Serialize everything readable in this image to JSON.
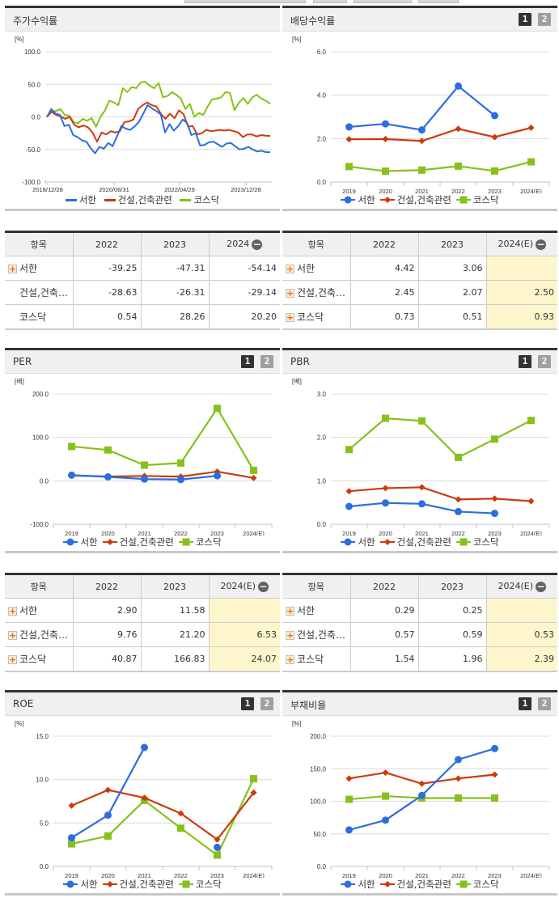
{
  "colors": {
    "seohan": "#2a6ee0",
    "construction": "#cc3a0c",
    "kosdaq": "#86c11c",
    "grid": "#dcdcdc",
    "estimate_bg": "#fdf6cd"
  },
  "legend": {
    "s1": "서한",
    "s2": "건설,건축관련",
    "s3": "코스닥"
  },
  "panels": {
    "stock_return": {
      "title": "주가수익률",
      "unit": "[%]"
    },
    "dividend_yield": {
      "title": "배당수익률",
      "unit": "[%]",
      "btn1": "1",
      "btn2": "2"
    },
    "per": {
      "title": "PER",
      "unit": "[배]",
      "btn1": "1",
      "btn2": "2"
    },
    "pbr": {
      "title": "PBR",
      "unit": "[배]",
      "btn1": "1",
      "btn2": "2"
    },
    "roe": {
      "title": "ROE",
      "unit": "[%]",
      "btn1": "1",
      "btn2": "2"
    },
    "debt_ratio": {
      "title": "부채비율",
      "unit": "[%]",
      "btn1": "1",
      "btn2": "2"
    }
  },
  "tables": {
    "stock_return": {
      "headers": [
        "항목",
        "2022",
        "2023",
        "2024"
      ],
      "rows": [
        {
          "name": "서한",
          "v": [
            "-39.25",
            "-47.31",
            "-54.14"
          ],
          "expand": true
        },
        {
          "name": "건설,건축…",
          "v": [
            "-28.63",
            "-26.31",
            "-29.14"
          ],
          "expand": false
        },
        {
          "name": "코스닥",
          "v": [
            "0.54",
            "28.26",
            "20.20"
          ],
          "expand": false
        }
      ]
    },
    "dividend_yield": {
      "headers": [
        "항목",
        "2022",
        "2023",
        "2024(E)"
      ],
      "rows": [
        {
          "name": "서한",
          "v": [
            "4.42",
            "3.06",
            ""
          ]
        },
        {
          "name": "건설,건축…",
          "v": [
            "2.45",
            "2.07",
            "2.50"
          ]
        },
        {
          "name": "코스닥",
          "v": [
            "0.73",
            "0.51",
            "0.93"
          ]
        }
      ]
    },
    "per": {
      "headers": [
        "항목",
        "2022",
        "2023",
        "2024(E)"
      ],
      "rows": [
        {
          "name": "서한",
          "v": [
            "2.90",
            "11.58",
            ""
          ]
        },
        {
          "name": "건설,건축…",
          "v": [
            "9.76",
            "21.20",
            "6.53"
          ]
        },
        {
          "name": "코스닥",
          "v": [
            "40.87",
            "166.83",
            "24.07"
          ]
        }
      ]
    },
    "pbr": {
      "headers": [
        "항목",
        "2022",
        "2023",
        "2024(E)"
      ],
      "rows": [
        {
          "name": "서한",
          "v": [
            "0.29",
            "0.25",
            ""
          ]
        },
        {
          "name": "건설,건축…",
          "v": [
            "0.57",
            "0.59",
            "0.53"
          ]
        },
        {
          "name": "코스닥",
          "v": [
            "1.54",
            "1.96",
            "2.39"
          ]
        }
      ]
    }
  },
  "chart_data": [
    {
      "id": "stock_return",
      "type": "line",
      "title": "주가수익률",
      "ylabel": "[%]",
      "ylim": [
        -100,
        100
      ],
      "yticks": [
        "100.0",
        "50.0",
        "0.0",
        "-50.0",
        "-100.0"
      ],
      "xticks": [
        "2018/12/28",
        "2020/08/31",
        "2022/04/29",
        "2023/12/28"
      ],
      "series": [
        {
          "name": "서한",
          "values": [
            0,
            12,
            5,
            3,
            -14,
            -12,
            -28,
            -31,
            -36,
            -38,
            -48,
            -56,
            -46,
            -49,
            -40,
            -45,
            -30,
            -14,
            -18,
            -20,
            -15,
            -8,
            5,
            18,
            13,
            9,
            4,
            -24,
            -11,
            -21,
            -14,
            -4,
            -9,
            -28,
            -25,
            -44,
            -43,
            -39,
            -38,
            -42,
            -46,
            -41,
            -40,
            -45,
            -50,
            -49,
            -46,
            -50,
            -53,
            -52,
            -54,
            -54.14
          ]
        },
        {
          "name": "건설,건축관련",
          "values": [
            0,
            8,
            3,
            1,
            -3,
            0,
            -12,
            -16,
            -13,
            -16,
            -24,
            -38,
            -24,
            -27,
            -22,
            -24,
            -22,
            -8,
            -7,
            -4,
            12,
            18,
            22,
            18,
            16,
            5,
            -3,
            5,
            -2,
            10,
            4,
            -15,
            -14,
            -27,
            -25,
            -20,
            -22,
            -21,
            -20,
            -21,
            -20,
            -22,
            -24,
            -31,
            -27,
            -27,
            -30,
            -28,
            -29,
            -29.14
          ]
        },
        {
          "name": "코스닥",
          "values": [
            0,
            8,
            9,
            12,
            3,
            2,
            -8,
            -10,
            -3,
            -6,
            -2,
            -15,
            0,
            10,
            25,
            22,
            18,
            44,
            38,
            46,
            44,
            53,
            54,
            48,
            44,
            52,
            30,
            32,
            38,
            34,
            28,
            12,
            20,
            0,
            6,
            3,
            16,
            27,
            28,
            30,
            38,
            37,
            10,
            22,
            29,
            20,
            30,
            34,
            28,
            25,
            20.2
          ]
        }
      ]
    },
    {
      "id": "dividend_yield",
      "type": "line",
      "title": "배당수익률",
      "ylabel": "[%]",
      "ylim": [
        0,
        6
      ],
      "yticks": [
        "6.0",
        "4.0",
        "2.0",
        "0.0"
      ],
      "categories": [
        "2019",
        "2020",
        "2021",
        "2022",
        "2023",
        "2024(E)"
      ],
      "series": [
        {
          "name": "서한",
          "values": [
            2.54,
            2.68,
            2.4,
            4.42,
            3.06,
            null
          ]
        },
        {
          "name": "건설,건축관련",
          "values": [
            1.97,
            1.98,
            1.89,
            2.45,
            2.07,
            2.5
          ]
        },
        {
          "name": "코스닥",
          "values": [
            0.71,
            0.5,
            0.55,
            0.73,
            0.51,
            0.93
          ]
        }
      ]
    },
    {
      "id": "per",
      "type": "line",
      "title": "PER",
      "ylabel": "[배]",
      "ylim": [
        -100,
        200
      ],
      "yticks": [
        "200.0",
        "100.0",
        "0.0",
        "-100.0"
      ],
      "categories": [
        "2019",
        "2020",
        "2021",
        "2022",
        "2023",
        "2024(E)"
      ],
      "series": [
        {
          "name": "서한",
          "values": [
            13,
            9,
            4,
            2.9,
            11.58,
            null
          ]
        },
        {
          "name": "건설,건축관련",
          "values": [
            12,
            10,
            11,
            9.76,
            21.2,
            6.53
          ]
        },
        {
          "name": "코스닥",
          "values": [
            79,
            71,
            36,
            40.87,
            166.83,
            24.07
          ]
        }
      ]
    },
    {
      "id": "pbr",
      "type": "line",
      "title": "PBR",
      "ylabel": "[배]",
      "ylim": [
        0,
        3
      ],
      "yticks": [
        "3.0",
        "2.0",
        "1.0",
        "0.0"
      ],
      "categories": [
        "2019",
        "2020",
        "2021",
        "2022",
        "2023",
        "2024(E)"
      ],
      "series": [
        {
          "name": "서한",
          "values": [
            0.41,
            0.49,
            0.47,
            0.29,
            0.25,
            null
          ]
        },
        {
          "name": "건설,건축관련",
          "values": [
            0.76,
            0.83,
            0.85,
            0.57,
            0.59,
            0.53
          ]
        },
        {
          "name": "코스닥",
          "values": [
            1.72,
            2.44,
            2.38,
            1.54,
            1.96,
            2.39
          ]
        }
      ]
    },
    {
      "id": "roe",
      "type": "line",
      "title": "ROE",
      "ylabel": "[%]",
      "ylim": [
        0,
        15
      ],
      "yticks": [
        "15.0",
        "10.0",
        "5.0",
        "0.0"
      ],
      "categories": [
        "2019",
        "2020",
        "2021",
        "2022",
        "2023",
        "2024(E)"
      ],
      "series": [
        {
          "name": "서한",
          "values": [
            3.3,
            5.9,
            13.7,
            null,
            2.2,
            null
          ]
        },
        {
          "name": "건설,건축관련",
          "values": [
            7.0,
            8.8,
            7.9,
            6.1,
            3.1,
            8.5
          ]
        },
        {
          "name": "코스닥",
          "values": [
            2.6,
            3.5,
            7.6,
            4.4,
            1.3,
            10.1
          ]
        }
      ]
    },
    {
      "id": "debt_ratio",
      "type": "line",
      "title": "부채비율",
      "ylabel": "[%]",
      "ylim": [
        0,
        200
      ],
      "yticks": [
        "200.0",
        "150.0",
        "100.0",
        "50.0",
        "0.0"
      ],
      "categories": [
        "2019",
        "2020",
        "2021",
        "2022",
        "2023",
        "2024(E)"
      ],
      "series": [
        {
          "name": "서한",
          "values": [
            56,
            71,
            109,
            164,
            181,
            null
          ]
        },
        {
          "name": "건설,건축관련",
          "values": [
            135,
            144,
            127,
            135,
            141,
            null
          ]
        },
        {
          "name": "코스닥",
          "values": [
            103,
            108,
            105,
            105,
            105,
            null
          ]
        }
      ]
    }
  ]
}
